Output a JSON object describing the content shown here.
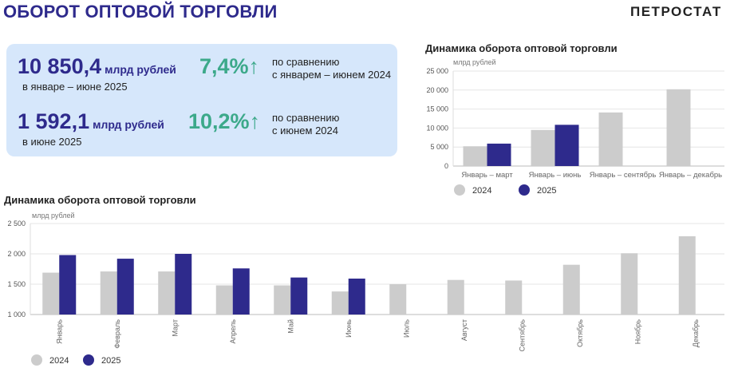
{
  "header": {
    "title": "ОБОРОТ ОПТОВОЙ ТОРГОВЛИ",
    "logo": "ПЕТРОСТАТ"
  },
  "kpis": [
    {
      "value": "10 850,4",
      "unit": "млрд рублей",
      "period": "в январе – июне 2025",
      "pct": "7,4%",
      "arrow": "↑",
      "compare": [
        "по сравнению",
        "с январем – июнем 2024"
      ]
    },
    {
      "value": "1 592,1",
      "unit": "млрд рублей",
      "period": "в июне 2025",
      "pct": "10,2%",
      "arrow": "↑",
      "compare": [
        "по сравнению",
        "с июнем 2024"
      ]
    }
  ],
  "colors": {
    "y2024": "#cccccc",
    "y2025": "#2e2a8c",
    "accent": "#3ca98a",
    "panel": "#d6e7fb"
  },
  "chart_data": [
    {
      "type": "bar",
      "title": "Динамика оборота оптовой торговли",
      "ylabel": "млрд рублей",
      "ylim": [
        0,
        25000
      ],
      "yticks": [
        0,
        5000,
        10000,
        15000,
        20000,
        25000
      ],
      "ytick_labels": [
        "0",
        "5 000",
        "10 000",
        "15 000",
        "20 000",
        "25 000"
      ],
      "categories": [
        "Январь – март",
        "Январь – июнь",
        "Январь – сентябрь",
        "Январь – декабрь"
      ],
      "series": [
        {
          "name": "2024",
          "values": [
            5200,
            9500,
            14100,
            20200
          ]
        },
        {
          "name": "2025",
          "values": [
            5900,
            10850.4,
            null,
            null
          ]
        }
      ],
      "grid": true,
      "legend": "bottom"
    },
    {
      "type": "bar",
      "title": "Динамика оборота оптовой торговли",
      "ylabel": "млрд рублей",
      "ylim": [
        1000,
        2500
      ],
      "yticks": [
        1000,
        1500,
        2000,
        2500
      ],
      "ytick_labels": [
        "1 000",
        "1 500",
        "2 000",
        "2 500"
      ],
      "categories": [
        "Январь",
        "Февраль",
        "Март",
        "Апрель",
        "Май",
        "Июнь",
        "Июль",
        "Август",
        "Сентябрь",
        "Октябрь",
        "Ноябрь",
        "Декабрь"
      ],
      "series": [
        {
          "name": "2024",
          "values": [
            1690,
            1710,
            1710,
            1480,
            1480,
            1380,
            1500,
            1570,
            1560,
            1820,
            2010,
            2290
          ]
        },
        {
          "name": "2025",
          "values": [
            1980,
            1920,
            2000,
            1760,
            1610,
            1592.1,
            null,
            null,
            null,
            null,
            null,
            null
          ]
        }
      ],
      "grid": true,
      "legend": "bottom"
    }
  ]
}
